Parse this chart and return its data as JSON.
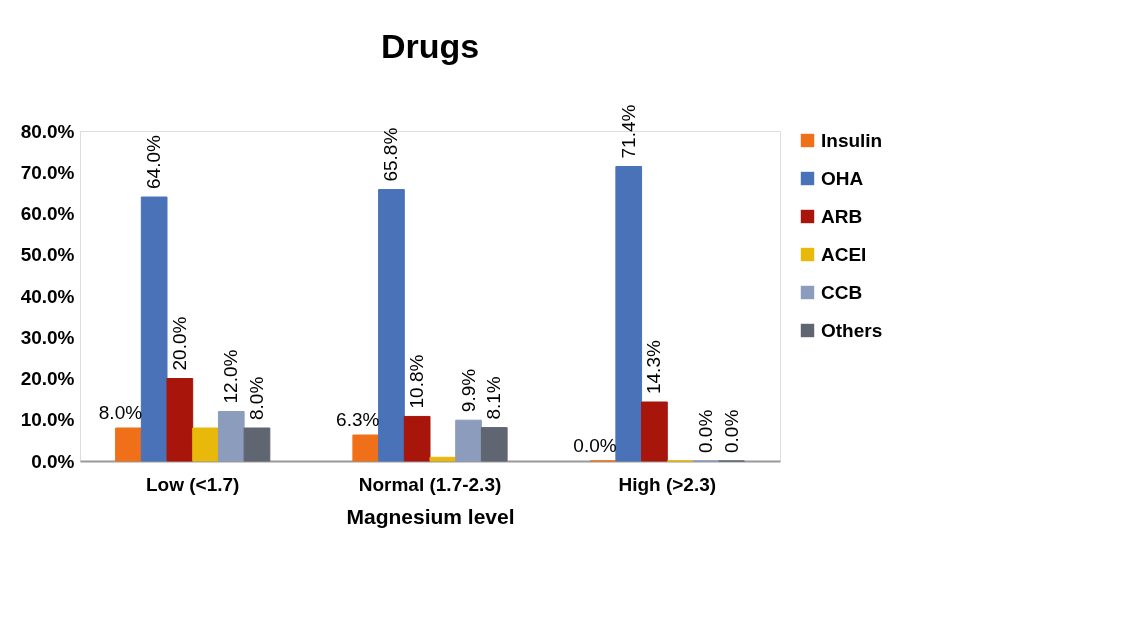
{
  "chart_data": {
    "type": "bar",
    "title": "Drugs",
    "xlabel": "Magnesium level",
    "categories": [
      "Low (<1.7)",
      "Normal (1.7-2.3)",
      "High (>2.3)"
    ],
    "series": [
      {
        "name": "Insulin",
        "color": "#f0701a",
        "values": [
          8.0,
          6.3,
          0.0
        ],
        "value_labels": [
          "8.0%",
          "6.3%",
          "0.0%"
        ]
      },
      {
        "name": "OHA",
        "color": "#4a72b8",
        "values": [
          64.0,
          65.8,
          71.4
        ],
        "value_labels": [
          "64.0%",
          "65.8%",
          "71.4%"
        ]
      },
      {
        "name": "ARB",
        "color": "#a8150a",
        "values": [
          20.0,
          10.8,
          14.3
        ],
        "value_labels": [
          "20.0%",
          "10.8%",
          "14.3%"
        ]
      },
      {
        "name": "ACEI",
        "color": "#e8b80a",
        "values": [
          8.0,
          0.9,
          0.0
        ],
        "value_labels": [
          null,
          null,
          null
        ]
      },
      {
        "name": "CCB",
        "color": "#8c9cbc",
        "values": [
          12.0,
          9.9,
          0.0
        ],
        "value_labels": [
          "12.0%",
          "9.9%",
          "0.0%"
        ]
      },
      {
        "name": "Others",
        "color": "#5f6672",
        "values": [
          8.0,
          8.1,
          0.0
        ],
        "value_labels": [
          "8.0%",
          "8.1%",
          "0.0%"
        ]
      }
    ],
    "ylim": [
      0,
      80
    ],
    "yticks": [
      {
        "value": 0,
        "label": "0.0%"
      },
      {
        "value": 10,
        "label": "10.0%"
      },
      {
        "value": 20,
        "label": "20.0%"
      },
      {
        "value": 30,
        "label": "30.0%"
      },
      {
        "value": 40,
        "label": "40.0%"
      },
      {
        "value": 50,
        "label": "50.0%"
      },
      {
        "value": 60,
        "label": "60.0%"
      },
      {
        "value": 70,
        "label": "70.0%"
      },
      {
        "value": 80,
        "label": "80.0%"
      }
    ],
    "grid": false,
    "legend": "right"
  }
}
